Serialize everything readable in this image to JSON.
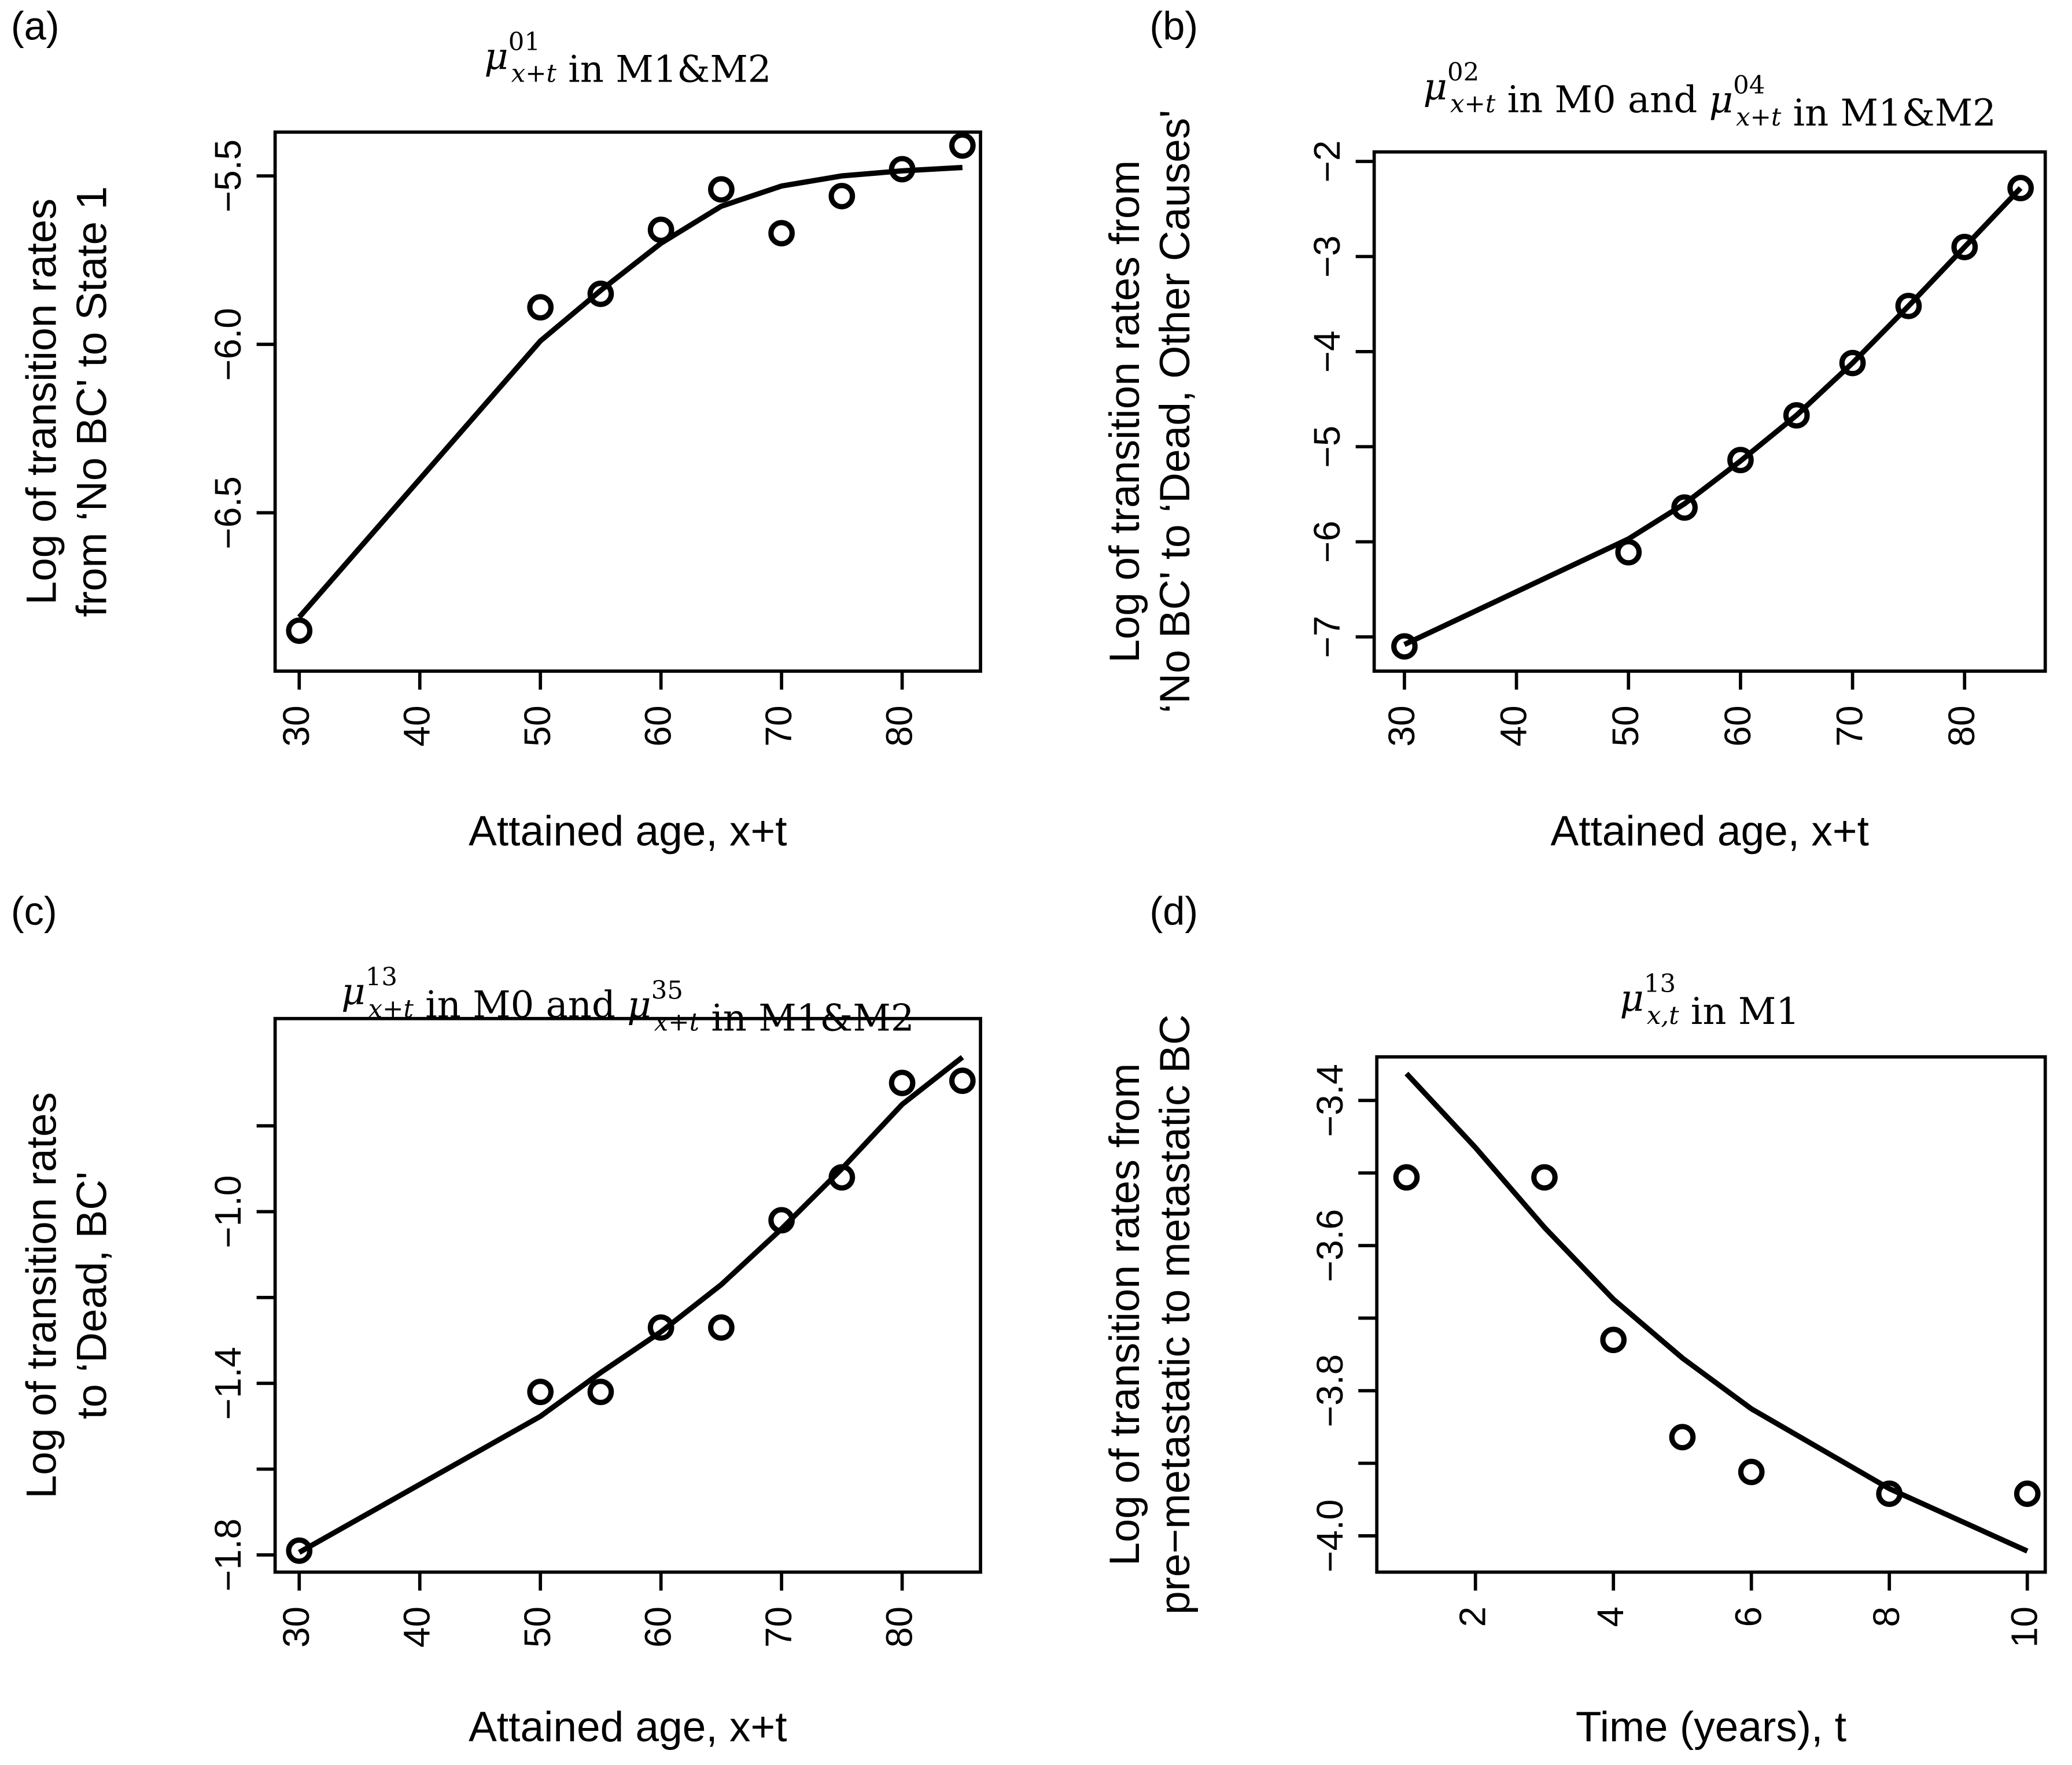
{
  "chart_data": [
    {
      "panel_label": "(a)",
      "type": "line+scatter",
      "title": [
        {
          "type": "mu",
          "sup": "01",
          "sub": "x+t"
        },
        {
          "type": "text",
          "text": " in M1&M2"
        }
      ],
      "xlabel": "Attained age, x+t",
      "ylabel": [
        "Log of transition rates",
        "from ‘No BC' to State 1"
      ],
      "xlim": [
        28,
        86.5
      ],
      "ylim": [
        -6.97,
        -5.37
      ],
      "xticks": [
        30,
        40,
        50,
        60,
        70,
        80
      ],
      "xtick_labels": [
        "30",
        "40",
        "50",
        "60",
        "70",
        "80"
      ],
      "yticks": [
        -6.5,
        -6.0,
        -5.5
      ],
      "ytick_labels": [
        "−6.5",
        "−6.0",
        "−5.5"
      ],
      "points": {
        "x": [
          30,
          50,
          55,
          60,
          65,
          70,
          75,
          80,
          85
        ],
        "y": [
          -6.85,
          -5.89,
          -5.85,
          -5.66,
          -5.54,
          -5.67,
          -5.56,
          -5.48,
          -5.41
        ]
      },
      "line": {
        "x": [
          30,
          50,
          55,
          60,
          65,
          70,
          75,
          80,
          85
        ],
        "y": [
          -6.81,
          -5.99,
          -5.84,
          -5.7,
          -5.59,
          -5.53,
          -5.5,
          -5.485,
          -5.475
        ]
      }
    },
    {
      "panel_label": "(b)",
      "type": "line+scatter",
      "title": [
        {
          "type": "mu",
          "sup": "02",
          "sub": "x+t"
        },
        {
          "type": "text",
          "text": " in M0 and "
        },
        {
          "type": "mu",
          "sup": "04",
          "sub": "x+t"
        },
        {
          "type": "text",
          "text": " in M1&M2"
        }
      ],
      "xlabel": "Attained age, x+t",
      "ylabel": [
        "Log of transition rates from",
        "‘No BC' to ‘Dead, Other Causes'"
      ],
      "xlim": [
        27.3,
        87.2
      ],
      "ylim": [
        -7.36,
        -1.9
      ],
      "xticks": [
        30,
        40,
        50,
        60,
        70,
        80
      ],
      "xtick_labels": [
        "30",
        "40",
        "50",
        "60",
        "70",
        "80"
      ],
      "yticks": [
        -7,
        -6,
        -5,
        -4,
        -3,
        -2
      ],
      "ytick_labels": [
        "−7",
        "−6",
        "−5",
        "−4",
        "−3",
        "−2"
      ],
      "points": {
        "x": [
          30,
          50,
          55,
          60,
          65,
          70,
          75,
          80,
          85
        ],
        "y": [
          -7.1,
          -6.11,
          -5.64,
          -5.14,
          -4.67,
          -4.12,
          -3.52,
          -2.9,
          -2.28
        ]
      },
      "line": {
        "x": [
          30,
          50,
          55,
          60,
          65,
          70,
          75,
          80,
          85
        ],
        "y": [
          -7.08,
          -5.97,
          -5.6,
          -5.15,
          -4.67,
          -4.12,
          -3.52,
          -2.9,
          -2.28
        ]
      }
    },
    {
      "panel_label": "(c)",
      "type": "line+scatter",
      "title": [
        {
          "type": "mu",
          "sup": "13",
          "sub": "x+t"
        },
        {
          "type": "text",
          "text": " in M0 and "
        },
        {
          "type": "mu",
          "sup": "35",
          "sub": "x+t"
        },
        {
          "type": "text",
          "text": " in M1&M2"
        }
      ],
      "xlabel": "Attained age, x+t",
      "ylabel": [
        "Log of transition rates",
        "to ‘Dead, BC'"
      ],
      "xlim": [
        28,
        86.5
      ],
      "ylim": [
        -1.84,
        -0.55
      ],
      "xticks": [
        30,
        40,
        50,
        60,
        70,
        80
      ],
      "xtick_labels": [
        "30",
        "40",
        "50",
        "60",
        "70",
        "80"
      ],
      "yticks": [
        -1.8,
        -1.6,
        -1.4,
        -1.2,
        -1.0,
        -0.8
      ],
      "ytick_labels": [
        "−1.8",
        "",
        "−1.4",
        "",
        "−1.0",
        ""
      ],
      "points": {
        "x": [
          30,
          50,
          55,
          60,
          65,
          70,
          75,
          80,
          85
        ],
        "y": [
          -1.79,
          -1.42,
          -1.42,
          -1.27,
          -1.27,
          -1.02,
          -0.92,
          -0.7,
          -0.695
        ]
      },
      "line": {
        "x": [
          30,
          50,
          55,
          60,
          65,
          70,
          75,
          80,
          85
        ],
        "y": [
          -1.794,
          -1.477,
          -1.375,
          -1.28,
          -1.17,
          -1.04,
          -0.9,
          -0.75,
          -0.64
        ]
      }
    },
    {
      "panel_label": "(d)",
      "type": "line+scatter",
      "title": [
        {
          "type": "mu",
          "sup": "13",
          "sub": "x,t"
        },
        {
          "type": "text",
          "text": " in M1"
        }
      ],
      "xlabel": "Time (years), t",
      "ylabel": [
        "Log of transition rates from",
        "pre−metastatic to metastatic BC"
      ],
      "xlim": [
        0.57,
        10.26
      ],
      "ylim": [
        -4.05,
        -3.34
      ],
      "xticks": [
        2,
        4,
        6,
        8,
        10
      ],
      "xtick_labels": [
        "2",
        "4",
        "6",
        "8",
        "10"
      ],
      "yticks": [
        -4.0,
        -3.9,
        -3.8,
        -3.7,
        -3.6,
        -3.5,
        -3.4
      ],
      "ytick_labels": [
        "−4.0",
        "",
        "−3.8",
        "",
        "−3.6",
        "",
        "−3.4"
      ],
      "points": {
        "x": [
          1,
          3,
          4,
          5,
          6,
          8,
          10
        ],
        "y": [
          -3.506,
          -3.506,
          -3.73,
          -3.864,
          -3.912,
          -3.942,
          -3.942
        ]
      },
      "line": {
        "x": [
          1,
          2,
          3,
          4,
          5,
          6,
          8,
          10
        ],
        "y": [
          -3.363,
          -3.465,
          -3.575,
          -3.674,
          -3.755,
          -3.825,
          -3.935,
          -4.021
        ]
      }
    }
  ]
}
